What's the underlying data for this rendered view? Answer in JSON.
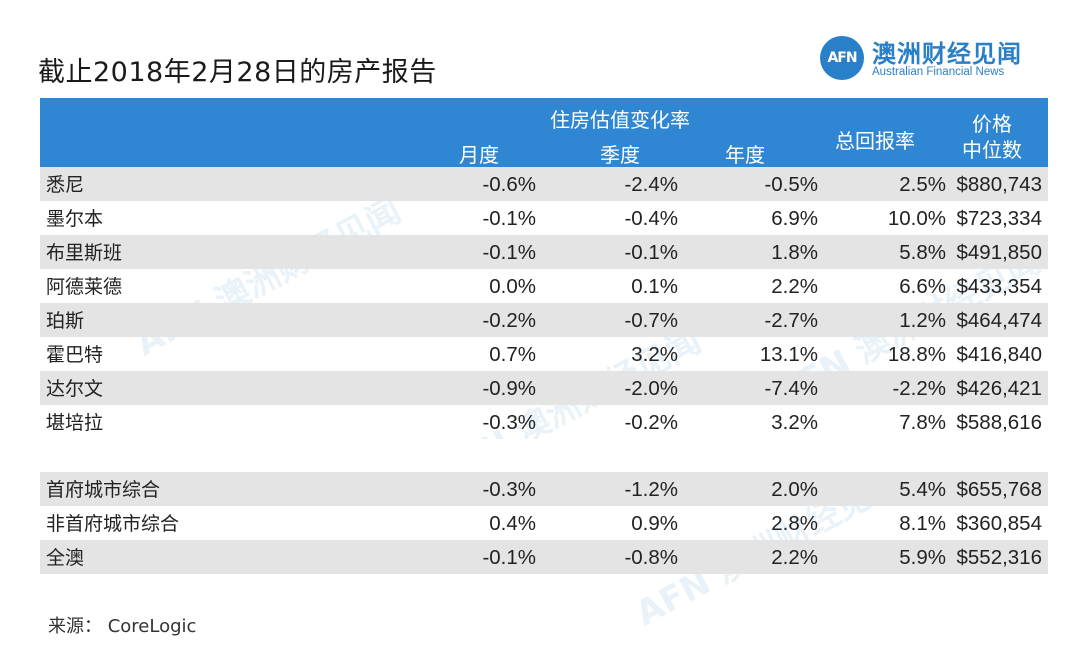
{
  "title": "截止2018年2月28日的房产报告",
  "logo": {
    "mark": "AFN",
    "cn": "澳洲财经见闻",
    "en": "Australian Financial News"
  },
  "header": {
    "group": "住房估值变化率",
    "monthly": "月度",
    "quarterly": "季度",
    "annual": "年度",
    "total_return": "总回报率",
    "median_line1": "价格",
    "median_line2": "中位数"
  },
  "rows": [
    {
      "city": "悉尼",
      "m": "-0.6%",
      "q": "-2.4%",
      "y": "-0.5%",
      "r": "2.5%",
      "p": "$880,743"
    },
    {
      "city": "墨尔本",
      "m": "-0.1%",
      "q": "-0.4%",
      "y": "6.9%",
      "r": "10.0%",
      "p": "$723,334"
    },
    {
      "city": "布里斯班",
      "m": "-0.1%",
      "q": "-0.1%",
      "y": "1.8%",
      "r": "5.8%",
      "p": "$491,850"
    },
    {
      "city": "阿德莱德",
      "m": "0.0%",
      "q": "0.1%",
      "y": "2.2%",
      "r": "6.6%",
      "p": "$433,354"
    },
    {
      "city": "珀斯",
      "m": "-0.2%",
      "q": "-0.7%",
      "y": "-2.7%",
      "r": "1.2%",
      "p": "$464,474"
    },
    {
      "city": "霍巴特",
      "m": "0.7%",
      "q": "3.2%",
      "y": "13.1%",
      "r": "18.8%",
      "p": "$416,840"
    },
    {
      "city": "达尔文",
      "m": "-0.9%",
      "q": "-2.0%",
      "y": "-7.4%",
      "r": "-2.2%",
      "p": "$426,421"
    },
    {
      "city": "堪培拉",
      "m": "-0.3%",
      "q": "-0.2%",
      "y": "3.2%",
      "r": "7.8%",
      "p": "$588,616"
    }
  ],
  "summary_rows": [
    {
      "city": "首府城市综合",
      "m": "-0.3%",
      "q": "-1.2%",
      "y": "2.0%",
      "r": "5.4%",
      "p": "$655,768"
    },
    {
      "city": "非首府城市综合",
      "m": "0.4%",
      "q": "0.9%",
      "y": "2.8%",
      "r": "8.1%",
      "p": "$360,854"
    },
    {
      "city": "全澳",
      "m": "-0.1%",
      "q": "-0.8%",
      "y": "2.2%",
      "r": "5.9%",
      "p": "$552,316"
    }
  ],
  "source": "来源： CoreLogic",
  "colors": {
    "header": "#2f86d3",
    "shade": "#e4e4e4",
    "brand": "#2a7fc9"
  }
}
